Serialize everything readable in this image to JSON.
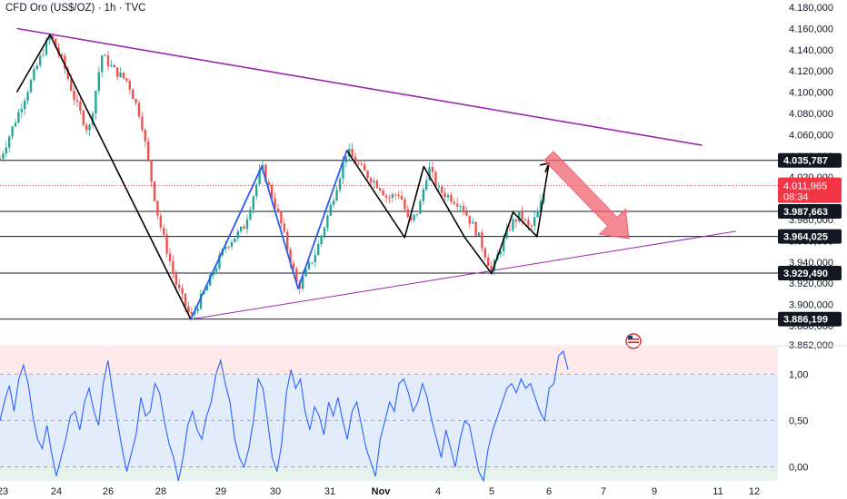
{
  "header": {
    "title": "CFD Oro (US$/OZ) · 1h · TVC"
  },
  "colors": {
    "up": "#26a69a",
    "down": "#ef5350",
    "trendline": "#9c27b0",
    "pattern_line": "#000000",
    "wave": "#2962ff",
    "rsi_line": "#2962ff",
    "arrow": "#f06470",
    "current_price_badge": "#f23645"
  },
  "chart_data": [
    {
      "type": "candlestick",
      "title": "CFD Oro (US$/OZ) · 1h · TVC",
      "ylim": [
        3862000,
        4180000
      ],
      "y_ticks": [
        "4.180,000",
        "4.160,000",
        "4.140,000",
        "4.120,000",
        "4.100,000",
        "4.080,000",
        "4.060,000",
        "4.040,000",
        "4.020,000",
        "4.000,000",
        "3.980,000",
        "3.960,000",
        "3.940,000",
        "3.920,000",
        "3.900,000",
        "3.880,000",
        "3.862,000"
      ],
      "x_ticks": [
        "23",
        "24",
        "26",
        "28",
        "29",
        "30",
        "31",
        "Nov",
        "4",
        "5",
        "6",
        "7",
        "9",
        "11",
        "12"
      ],
      "price_levels": [
        {
          "value": 4035787,
          "label": "4.035,787"
        },
        {
          "value": 3987663,
          "label": "3.987,663"
        },
        {
          "value": 3964025,
          "label": "3.964,025"
        },
        {
          "value": 3929490,
          "label": "3.929,490"
        },
        {
          "value": 3886199,
          "label": "3.886,199"
        }
      ],
      "current_price": {
        "value": 4011965,
        "label": "4.011,965",
        "countdown": "08:34"
      },
      "price_path": [
        [
          "Oct 23 00:00",
          4110000
        ],
        [
          "Oct 23 10:00",
          4135000
        ],
        [
          "Oct 23 18:00",
          4154000
        ],
        [
          "Oct 24 06:00",
          4128000
        ],
        [
          "Oct 24 18:00",
          4090000
        ],
        [
          "Oct 25 06:00",
          4062000
        ],
        [
          "Oct 25 18:00",
          4135000
        ],
        [
          "Oct 26 06:00",
          4120000
        ],
        [
          "Oct 26 18:00",
          4110000
        ],
        [
          "Oct 27 06:00",
          4075000
        ],
        [
          "Oct 27 14:00",
          4025000
        ],
        [
          "Oct 27 22:00",
          3980000
        ],
        [
          "Oct 28 06:00",
          3920000
        ],
        [
          "Oct 28 12:00",
          3887000
        ],
        [
          "Oct 28 18:00",
          3915000
        ],
        [
          "Oct 29 02:00",
          3955000
        ],
        [
          "Oct 29 10:00",
          3972000
        ],
        [
          "Oct 29 18:00",
          4030000
        ],
        [
          "Oct 30 02:00",
          3980000
        ],
        [
          "Oct 30 10:00",
          3915000
        ],
        [
          "Oct 30 18:00",
          3950000
        ],
        [
          "Oct 31 00:00",
          3990000
        ],
        [
          "Oct 31 08:00",
          4045000
        ],
        [
          "Oct 31 16:00",
          4025000
        ],
        [
          "Nov 1 00:00",
          4010000
        ],
        [
          "Nov 1 08:00",
          4000000
        ],
        [
          "Nov 2 00:00",
          4005000
        ],
        [
          "Nov 2 12:00",
          3975000
        ],
        [
          "Nov 3 00:00",
          3990000
        ],
        [
          "Nov 3 12:00",
          4030000
        ],
        [
          "Nov 4 00:00",
          4008000
        ],
        [
          "Nov 4 10:00",
          3995000
        ],
        [
          "Nov 4 18:00",
          3965000
        ],
        [
          "Nov 5 00:00",
          3931000
        ],
        [
          "Nov 5 08:00",
          3955000
        ],
        [
          "Nov 5 16:00",
          3975000
        ],
        [
          "Nov 6 00:00",
          3985000
        ],
        [
          "Nov 6 08:00",
          3970000
        ],
        [
          "Nov 6 16:00",
          3990000
        ],
        [
          "Nov 6 22:00",
          4015000
        ]
      ],
      "trendlines": [
        {
          "name": "upper-resistance",
          "from": [
            "Oct 22 12:00",
            4160000
          ],
          "to": [
            "Nov 11 12:00",
            4050000
          ]
        },
        {
          "name": "lower-support",
          "from": [
            "Oct 28 12:00",
            3886000
          ],
          "to": [
            "Nov 12 12:00",
            3969000
          ]
        }
      ],
      "pattern_path": [
        [
          "Oct 22 12:00",
          4100000
        ],
        [
          "Oct 23 18:00",
          4154000
        ],
        [
          "Oct 28 12:00",
          3886000
        ],
        [
          "Oct 29 18:00",
          4030000
        ],
        [
          "Oct 30 10:00",
          3915000
        ],
        [
          "Oct 31 08:00",
          4045000
        ],
        [
          "Nov 2 06:00",
          3963000
        ],
        [
          "Nov 3 06:00",
          4030000
        ],
        [
          "Nov 4 12:00",
          3963000
        ],
        [
          "Nov 5 00:00",
          3929000
        ],
        [
          "Nov 5 18:00",
          3987000
        ],
        [
          "Nov 6 14:00",
          3964000
        ],
        [
          "Nov 7 00:00",
          4033000
        ]
      ],
      "wave_path": [
        [
          "Oct 28 12:00",
          3886000
        ],
        [
          "Oct 29 18:00",
          4030000
        ],
        [
          "Oct 30 10:00",
          3915000
        ],
        [
          "Oct 31 08:00",
          4045000
        ]
      ],
      "projection_arrow": {
        "from": [
          "Nov 7 00:00",
          4040000
        ],
        "to": [
          "Nov 9 00:00",
          3962000
        ]
      }
    },
    {
      "type": "line",
      "title": "",
      "ylim": [
        -0.15,
        1.3
      ],
      "y_ticks": [
        "1,00",
        "0,50",
        "0,00"
      ],
      "overbought": 1.0,
      "oversold": 0.0,
      "mid": 0.5,
      "series": [
        {
          "values": [
            0.5,
            0.72,
            0.88,
            0.6,
            0.95,
            1.1,
            0.9,
            0.55,
            0.3,
            0.2,
            0.45,
            0.15,
            -0.1,
            0.1,
            0.3,
            0.55,
            0.6,
            0.4,
            0.7,
            0.85,
            0.6,
            0.45,
            0.9,
            1.15,
            0.8,
            0.5,
            0.2,
            -0.05,
            0.15,
            0.35,
            0.75,
            0.55,
            0.6,
            0.9,
            0.8,
            0.5,
            0.25,
            0.1,
            -0.15,
            0.1,
            0.45,
            0.6,
            0.4,
            0.3,
            0.55,
            0.7,
            1.0,
            1.15,
            0.9,
            0.7,
            0.3,
            0.1,
            0.0,
            0.2,
            0.5,
            0.95,
            0.85,
            0.5,
            0.1,
            -0.05,
            0.25,
            0.8,
            1.05,
            0.85,
            0.95,
            0.6,
            0.4,
            0.65,
            0.55,
            0.35,
            0.7,
            0.55,
            0.75,
            0.5,
            0.3,
            0.6,
            0.7,
            0.45,
            0.2,
            0.05,
            -0.1,
            0.3,
            0.5,
            0.7,
            0.6,
            0.9,
            0.95,
            0.8,
            0.6,
            0.7,
            0.9,
            0.75,
            0.5,
            0.3,
            0.1,
            0.4,
            0.2,
            0.0,
            0.3,
            0.5,
            0.45,
            0.2,
            -0.05,
            -0.15,
            0.2,
            0.4,
            0.55,
            0.7,
            0.85,
            0.9,
            0.8,
            0.95,
            0.85,
            0.9,
            0.75,
            0.6,
            0.5,
            0.85,
            0.9,
            1.2,
            1.25,
            1.05
          ]
        }
      ]
    }
  ]
}
